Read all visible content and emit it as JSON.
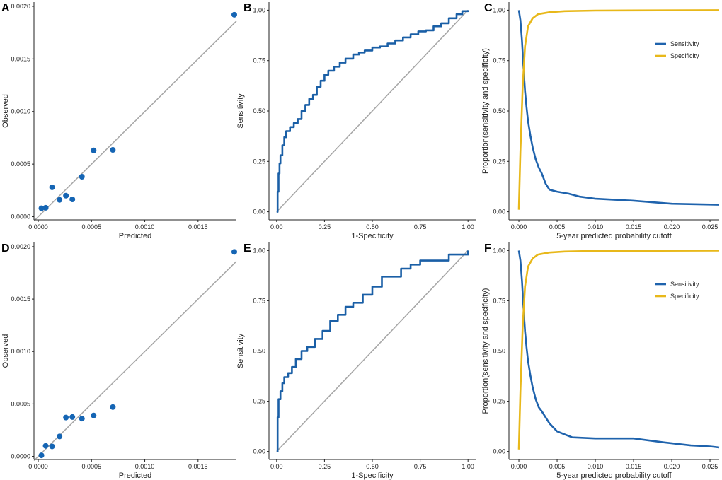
{
  "chart_data": [
    {
      "panel": "A",
      "type": "scatter",
      "xlabel": "Predicted",
      "ylabel": "Observed",
      "xlim": [
        -4e-05,
        0.00186
      ],
      "ylim": [
        -3e-05,
        0.00204
      ],
      "xticks": [
        0,
        0.0005,
        0.001,
        0.0015
      ],
      "xtick_labels": [
        "0.0000",
        "0.0005",
        "0.0010",
        "0.0015"
      ],
      "yticks": [
        0,
        0.0005,
        0.001,
        0.0015,
        0.002
      ],
      "ytick_labels": [
        "0.0000",
        "0.0005",
        "0.0010",
        "0.0015",
        "0.0020"
      ],
      "reference_line": [
        [
          -4e-05,
          -4e-05
        ],
        [
          0.00186,
          0.00186
        ]
      ],
      "points": [
        {
          "x": 3e-05,
          "y": 8e-05
        },
        {
          "x": 7e-05,
          "y": 8.5e-05
        },
        {
          "x": 0.00013,
          "y": 0.00028
        },
        {
          "x": 0.0002,
          "y": 0.00016
        },
        {
          "x": 0.00026,
          "y": 0.0002
        },
        {
          "x": 0.00032,
          "y": 0.000165
        },
        {
          "x": 0.00041,
          "y": 0.00038
        },
        {
          "x": 0.00052,
          "y": 0.00063
        },
        {
          "x": 0.0007,
          "y": 0.000635
        },
        {
          "x": 0.00184,
          "y": 0.00192
        }
      ]
    },
    {
      "panel": "B",
      "type": "line",
      "xlabel": "1-Specificity",
      "ylabel": "Sensitivity",
      "xlim": [
        -0.04,
        1.04
      ],
      "ylim": [
        -0.04,
        1.04
      ],
      "xticks": [
        0,
        0.25,
        0.5,
        0.75,
        1
      ],
      "xtick_labels": [
        "0.00",
        "0.25",
        "0.50",
        "0.75",
        "1.00"
      ],
      "yticks": [
        0,
        0.25,
        0.5,
        0.75,
        1
      ],
      "ytick_labels": [
        "0.00",
        "0.25",
        "0.50",
        "0.75",
        "1.00"
      ],
      "reference_line": [
        [
          0,
          0
        ],
        [
          1,
          1
        ]
      ],
      "series": [
        {
          "name": "ROC",
          "x": [
            0,
            0.005,
            0.01,
            0.015,
            0.02,
            0.03,
            0.04,
            0.05,
            0.07,
            0.09,
            0.11,
            0.13,
            0.15,
            0.17,
            0.19,
            0.21,
            0.23,
            0.25,
            0.27,
            0.3,
            0.33,
            0.36,
            0.4,
            0.43,
            0.46,
            0.5,
            0.54,
            0.58,
            0.62,
            0.66,
            0.7,
            0.74,
            0.78,
            0.82,
            0.86,
            0.9,
            0.94,
            0.97,
            1
          ],
          "y": [
            0,
            0.1,
            0.19,
            0.24,
            0.28,
            0.33,
            0.37,
            0.4,
            0.42,
            0.44,
            0.46,
            0.5,
            0.53,
            0.56,
            0.58,
            0.62,
            0.65,
            0.68,
            0.7,
            0.72,
            0.74,
            0.76,
            0.78,
            0.79,
            0.8,
            0.815,
            0.82,
            0.835,
            0.85,
            0.865,
            0.88,
            0.895,
            0.9,
            0.92,
            0.935,
            0.96,
            0.98,
            0.995,
            1
          ]
        }
      ]
    },
    {
      "panel": "C",
      "type": "line",
      "xlabel": "5-year predicted probability cutoff",
      "ylabel": "Proportion(sensitivity and specificity)",
      "xlim": [
        -0.0013,
        0.0262
      ],
      "ylim": [
        -0.04,
        1.04
      ],
      "xticks": [
        0,
        0.005,
        0.01,
        0.015,
        0.02,
        0.025
      ],
      "xtick_labels": [
        "0.000",
        "0.005",
        "0.010",
        "0.015",
        "0.020",
        "0.025"
      ],
      "yticks": [
        0,
        0.25,
        0.5,
        0.75,
        1
      ],
      "ytick_labels": [
        "0.00",
        "0.25",
        "0.50",
        "0.75",
        "1.00"
      ],
      "legend": {
        "position": "top-right",
        "entries": [
          "Sensitivity",
          "Specificity"
        ]
      },
      "series": [
        {
          "name": "Sensitivity",
          "x": [
            0,
            0.0002,
            0.0004,
            0.0006,
            0.0008,
            0.001,
            0.0012,
            0.0015,
            0.0018,
            0.0022,
            0.0026,
            0.003,
            0.0035,
            0.004,
            0.005,
            0.0065,
            0.008,
            0.01,
            0.015,
            0.02,
            0.0262
          ],
          "y": [
            1,
            0.95,
            0.85,
            0.72,
            0.6,
            0.52,
            0.45,
            0.38,
            0.32,
            0.26,
            0.22,
            0.19,
            0.14,
            0.11,
            0.1,
            0.09,
            0.075,
            0.065,
            0.055,
            0.04,
            0.035
          ]
        },
        {
          "name": "Specificity",
          "x": [
            0,
            0.0002,
            0.0005,
            0.0008,
            0.0012,
            0.0018,
            0.0025,
            0.004,
            0.006,
            0.01,
            0.0262
          ],
          "y": [
            0.01,
            0.3,
            0.62,
            0.82,
            0.92,
            0.96,
            0.98,
            0.99,
            0.995,
            0.998,
            1
          ]
        }
      ]
    },
    {
      "panel": "D",
      "type": "scatter",
      "xlabel": "Predicted",
      "ylabel": "Observed",
      "xlim": [
        -4e-05,
        0.00186
      ],
      "ylim": [
        -3e-05,
        0.00204
      ],
      "xticks": [
        0,
        0.0005,
        0.001,
        0.0015
      ],
      "xtick_labels": [
        "0.0000",
        "0.0005",
        "0.0010",
        "0.0015"
      ],
      "yticks": [
        0,
        0.0005,
        0.001,
        0.0015,
        0.002
      ],
      "ytick_labels": [
        "0.0000",
        "0.0005",
        "0.0010",
        "0.0015",
        "0.0020"
      ],
      "reference_line": [
        [
          -4e-05,
          -4e-05
        ],
        [
          0.00186,
          0.00186
        ]
      ],
      "points": [
        {
          "x": 3e-05,
          "y": 1e-05
        },
        {
          "x": 7e-05,
          "y": 0.0001
        },
        {
          "x": 0.00013,
          "y": 9.5e-05
        },
        {
          "x": 0.0002,
          "y": 0.00019
        },
        {
          "x": 0.00026,
          "y": 0.00037
        },
        {
          "x": 0.00032,
          "y": 0.000375
        },
        {
          "x": 0.00041,
          "y": 0.00036
        },
        {
          "x": 0.00052,
          "y": 0.00039
        },
        {
          "x": 0.0007,
          "y": 0.00047
        },
        {
          "x": 0.00184,
          "y": 0.00195
        }
      ]
    },
    {
      "panel": "E",
      "type": "line",
      "xlabel": "1-Specificity",
      "ylabel": "Sensitivity",
      "xlim": [
        -0.04,
        1.04
      ],
      "ylim": [
        -0.04,
        1.04
      ],
      "xticks": [
        0,
        0.25,
        0.5,
        0.75,
        1
      ],
      "xtick_labels": [
        "0.00",
        "0.25",
        "0.50",
        "0.75",
        "1.00"
      ],
      "yticks": [
        0,
        0.25,
        0.5,
        0.75,
        1
      ],
      "ytick_labels": [
        "0.00",
        "0.25",
        "0.50",
        "0.75",
        "1.00"
      ],
      "reference_line": [
        [
          0,
          0
        ],
        [
          1,
          1
        ]
      ],
      "series": [
        {
          "name": "ROC",
          "x": [
            0,
            0.005,
            0.01,
            0.02,
            0.03,
            0.04,
            0.06,
            0.08,
            0.1,
            0.13,
            0.16,
            0.2,
            0.24,
            0.28,
            0.32,
            0.36,
            0.4,
            0.45,
            0.5,
            0.55,
            0.65,
            0.7,
            0.75,
            0.9,
            1
          ],
          "y": [
            0,
            0.17,
            0.26,
            0.3,
            0.34,
            0.37,
            0.39,
            0.42,
            0.46,
            0.5,
            0.52,
            0.56,
            0.6,
            0.65,
            0.68,
            0.72,
            0.74,
            0.78,
            0.82,
            0.87,
            0.91,
            0.93,
            0.95,
            0.98,
            1
          ]
        }
      ]
    },
    {
      "panel": "F",
      "type": "line",
      "xlabel": "5-year predicted probability cutoff",
      "ylabel": "Proportion(sensitivity and specificity)",
      "xlim": [
        -0.0013,
        0.0262
      ],
      "ylim": [
        -0.04,
        1.04
      ],
      "xticks": [
        0,
        0.005,
        0.01,
        0.015,
        0.02,
        0.025
      ],
      "xtick_labels": [
        "0.000",
        "0.005",
        "0.010",
        "0.015",
        "0.020",
        "0.025"
      ],
      "yticks": [
        0,
        0.25,
        0.5,
        0.75,
        1
      ],
      "ytick_labels": [
        "0.00",
        "0.25",
        "0.50",
        "0.75",
        "1.00"
      ],
      "legend": {
        "position": "top-right",
        "entries": [
          "Sensitivity",
          "Specificity"
        ]
      },
      "series": [
        {
          "name": "Sensitivity",
          "x": [
            0,
            0.0002,
            0.0004,
            0.0006,
            0.0008,
            0.001,
            0.0012,
            0.0015,
            0.0018,
            0.0022,
            0.0026,
            0.003,
            0.0035,
            0.004,
            0.005,
            0.006,
            0.007,
            0.01,
            0.015,
            0.019,
            0.0225,
            0.025,
            0.0262
          ],
          "y": [
            1,
            0.95,
            0.85,
            0.72,
            0.6,
            0.52,
            0.45,
            0.38,
            0.32,
            0.26,
            0.22,
            0.2,
            0.17,
            0.14,
            0.1,
            0.085,
            0.07,
            0.065,
            0.065,
            0.045,
            0.03,
            0.025,
            0.02
          ]
        },
        {
          "name": "Specificity",
          "x": [
            0,
            0.0002,
            0.0005,
            0.0008,
            0.0012,
            0.0018,
            0.0025,
            0.004,
            0.006,
            0.01,
            0.0262
          ],
          "y": [
            0.01,
            0.3,
            0.62,
            0.82,
            0.92,
            0.96,
            0.98,
            0.99,
            0.995,
            0.998,
            1
          ]
        }
      ]
    }
  ],
  "colors": {
    "points": "#1565b4",
    "roc_line": "#1a5fa6",
    "sensitivity": "#1f63ad",
    "specificity": "#e8b81a",
    "reference": "#a6a6a6",
    "axis": "#222222"
  }
}
